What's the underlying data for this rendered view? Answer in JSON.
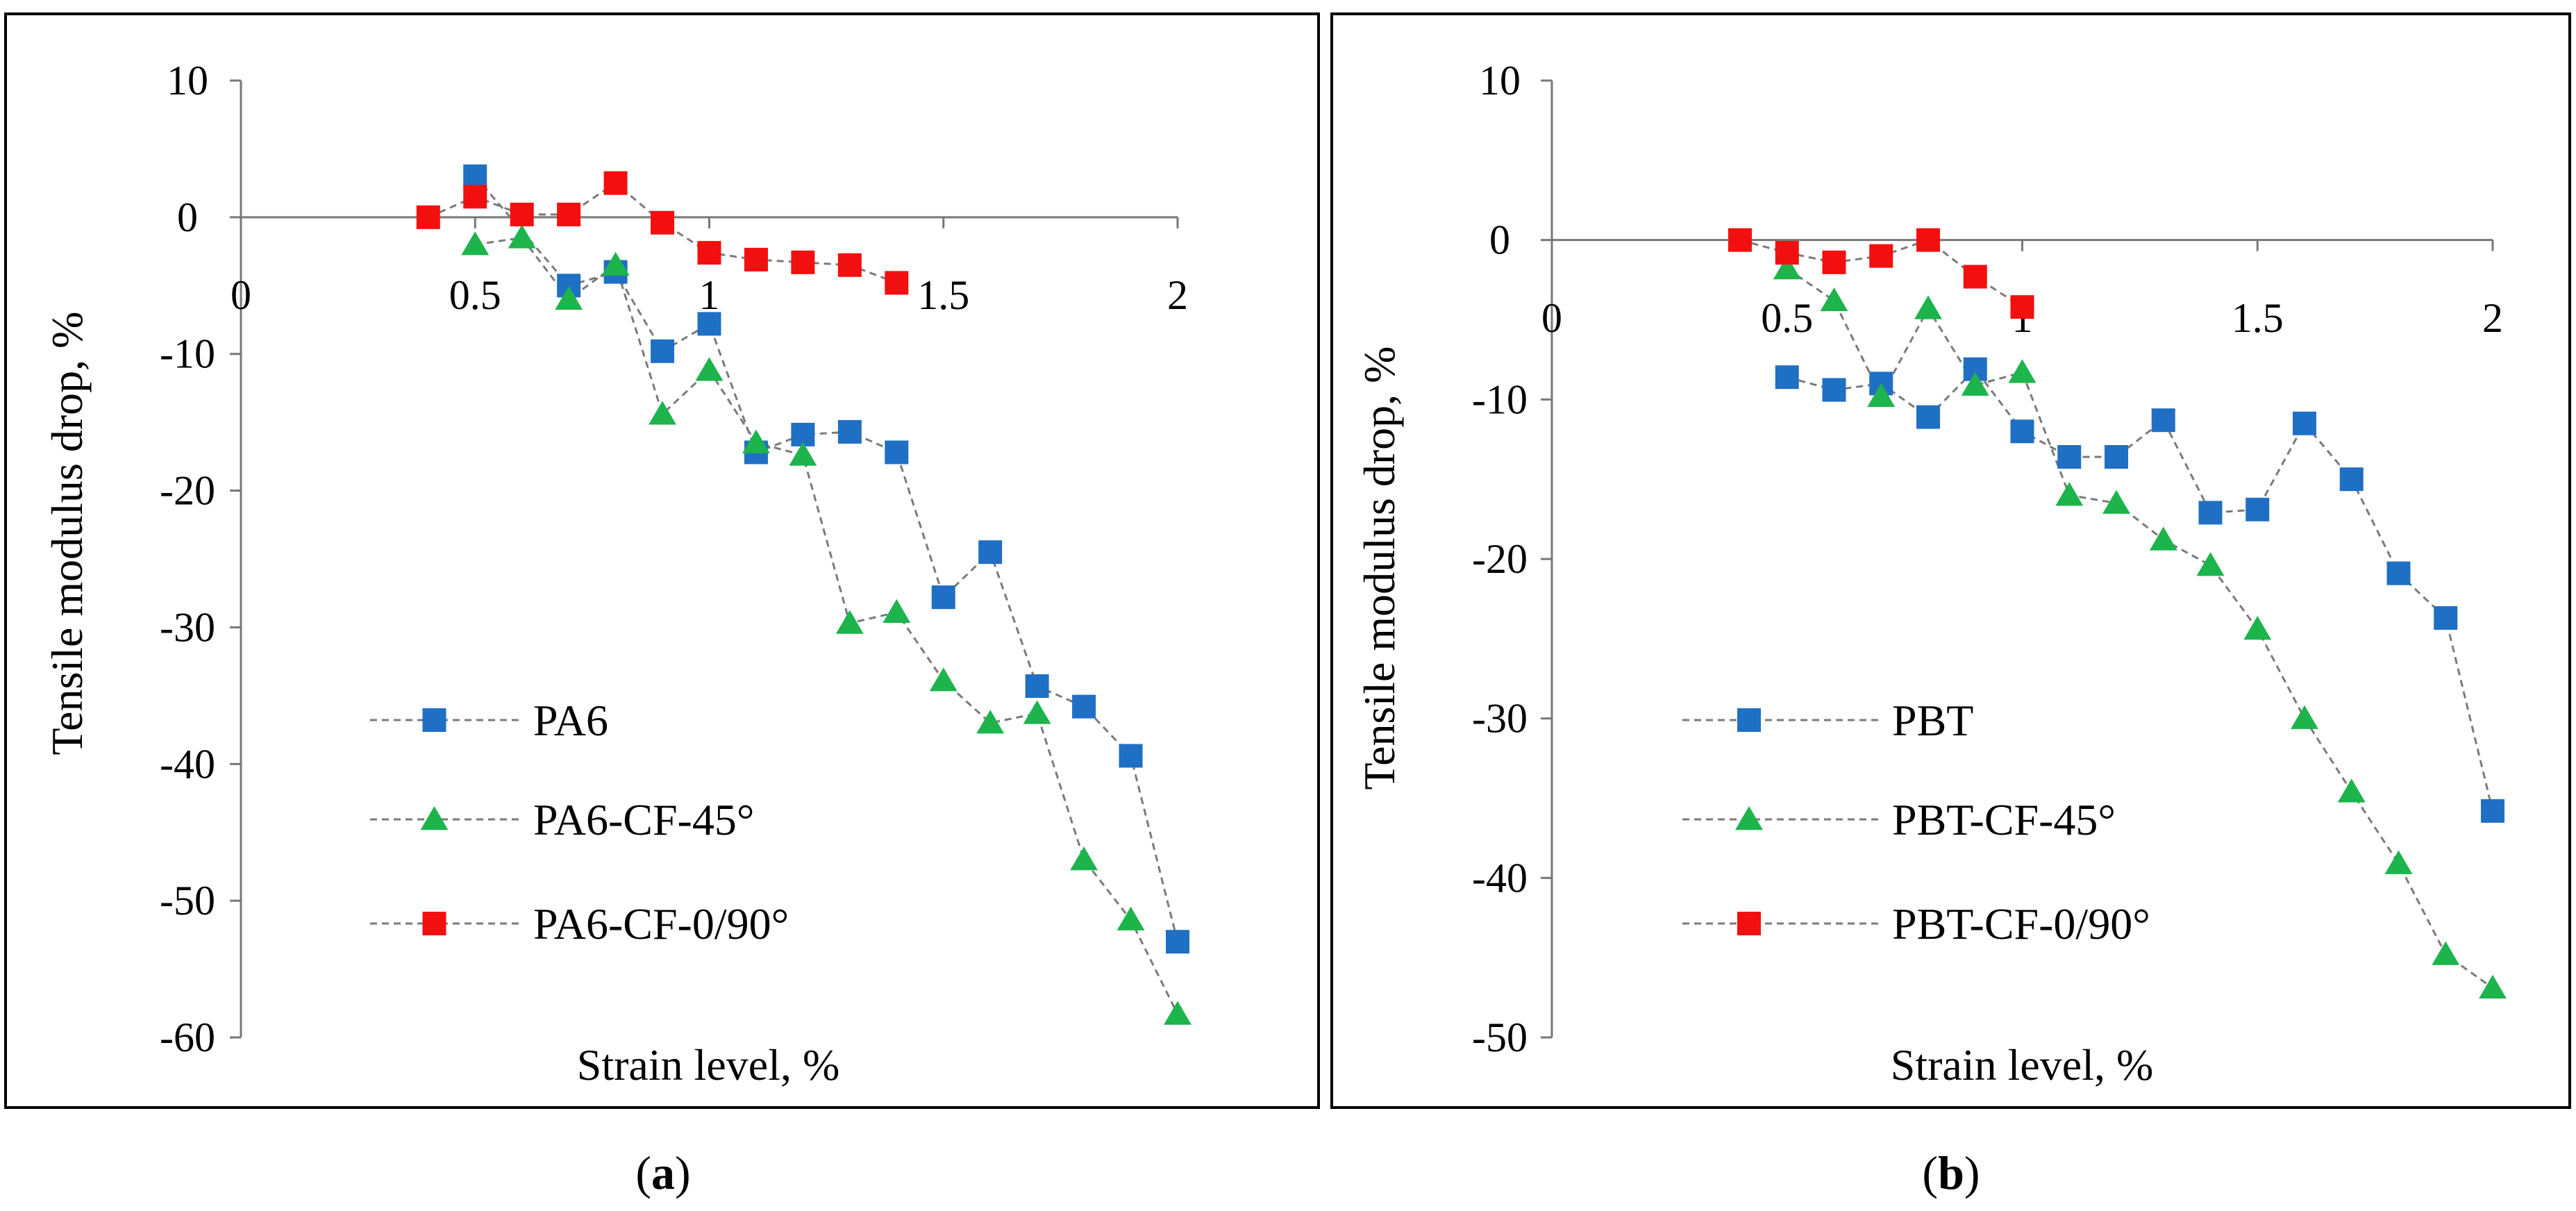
{
  "colors": {
    "blue": "#1F6FC5",
    "green": "#1DB44C",
    "red": "#F20F0F",
    "line": "#7a7a7a",
    "frame": "#000000"
  },
  "chart_data": [
    {
      "type": "scatter",
      "panel": "a",
      "caption_open": "(",
      "caption_label": "a",
      "caption_close": ")",
      "xlabel": "Strain level, %",
      "ylabel": "Tensile modulus drop, %",
      "xlim": [
        0,
        2
      ],
      "ylim": [
        -60,
        10
      ],
      "xticks": [
        "0",
        "0.5",
        "1",
        "1.5",
        "2"
      ],
      "yticks": [
        "10",
        "0",
        "-10",
        "-20",
        "-30",
        "-40",
        "-50",
        "-60"
      ],
      "grid": false,
      "legend_position": "bottom-left",
      "series": [
        {
          "name": "PA6",
          "marker": "square",
          "color": "#1F6FC5",
          "x": [
            0.5,
            0.7,
            0.8,
            0.9,
            1.0,
            1.1,
            1.2,
            1.3,
            1.4,
            1.5,
            1.6,
            1.7,
            1.8,
            1.9,
            2.0
          ],
          "y": [
            3.0,
            -5.0,
            -4.0,
            -9.8,
            -7.8,
            -17.2,
            -15.9,
            -15.7,
            -17.2,
            -27.8,
            -24.5,
            -34.3,
            -35.8,
            -39.4,
            -53.0
          ]
        },
        {
          "name": "PA6-CF-45°",
          "marker": "triangle",
          "color": "#1DB44C",
          "x": [
            0.5,
            0.6,
            0.7,
            0.8,
            0.9,
            1.0,
            1.1,
            1.2,
            1.3,
            1.4,
            1.5,
            1.6,
            1.7,
            1.8,
            1.9,
            2.0
          ],
          "y": [
            -2.0,
            -1.5,
            -6.0,
            -3.5,
            -14.4,
            -11.2,
            -16.5,
            -17.4,
            -29.7,
            -28.9,
            -33.9,
            -37.0,
            -36.3,
            -47.0,
            -51.4,
            -58.3
          ]
        },
        {
          "name": "PA6-CF-0/90°",
          "marker": "square",
          "color": "#F20F0F",
          "x": [
            0.4,
            0.5,
            0.6,
            0.7,
            0.8,
            0.9,
            1.0,
            1.1,
            1.2,
            1.3,
            1.4
          ],
          "y": [
            0.0,
            1.5,
            0.2,
            0.2,
            2.5,
            -0.4,
            -2.6,
            -3.1,
            -3.3,
            -3.5,
            -4.8
          ]
        }
      ]
    },
    {
      "type": "scatter",
      "panel": "b",
      "caption_open": "(",
      "caption_label": "b",
      "caption_close": ")",
      "xlabel": "Strain level, %",
      "ylabel": "Tensile modulus drop, %",
      "xlim": [
        0,
        2
      ],
      "ylim": [
        -50,
        10
      ],
      "xticks": [
        "0",
        "0.5",
        "1",
        "1.5",
        "2"
      ],
      "yticks": [
        "10",
        "0",
        "-10",
        "-20",
        "-30",
        "-40",
        "-50"
      ],
      "grid": false,
      "legend_position": "bottom-left",
      "series": [
        {
          "name": "PBT",
          "marker": "square",
          "color": "#1F6FC5",
          "x": [
            0.5,
            0.6,
            0.7,
            0.8,
            0.9,
            1.0,
            1.1,
            1.2,
            1.3,
            1.4,
            1.5,
            1.6,
            1.7,
            1.8,
            1.9,
            2.0
          ],
          "y": [
            -8.6,
            -9.4,
            -9.0,
            -11.1,
            -8.1,
            -12.0,
            -13.6,
            -13.6,
            -11.3,
            -17.1,
            -16.9,
            -11.5,
            -15.0,
            -20.9,
            -23.7,
            -35.8
          ]
        },
        {
          "name": "PBT-CF-45°",
          "marker": "triangle",
          "color": "#1DB44C",
          "x": [
            0.5,
            0.6,
            0.7,
            0.8,
            0.9,
            1.0,
            1.1,
            1.2,
            1.3,
            1.4,
            1.5,
            1.6,
            1.7,
            1.8,
            1.9,
            2.0
          ],
          "y": [
            -1.8,
            -3.8,
            -9.8,
            -4.3,
            -9.1,
            -8.3,
            -16.0,
            -16.5,
            -18.8,
            -20.4,
            -24.4,
            -30.0,
            -34.6,
            -39.1,
            -44.8,
            -46.9
          ]
        },
        {
          "name": "PBT-CF-0/90°",
          "marker": "square",
          "color": "#F20F0F",
          "x": [
            0.4,
            0.5,
            0.6,
            0.7,
            0.8,
            0.9,
            1.0
          ],
          "y": [
            0.0,
            -0.8,
            -1.4,
            -1.0,
            0.0,
            -2.3,
            -4.2
          ]
        }
      ]
    }
  ]
}
